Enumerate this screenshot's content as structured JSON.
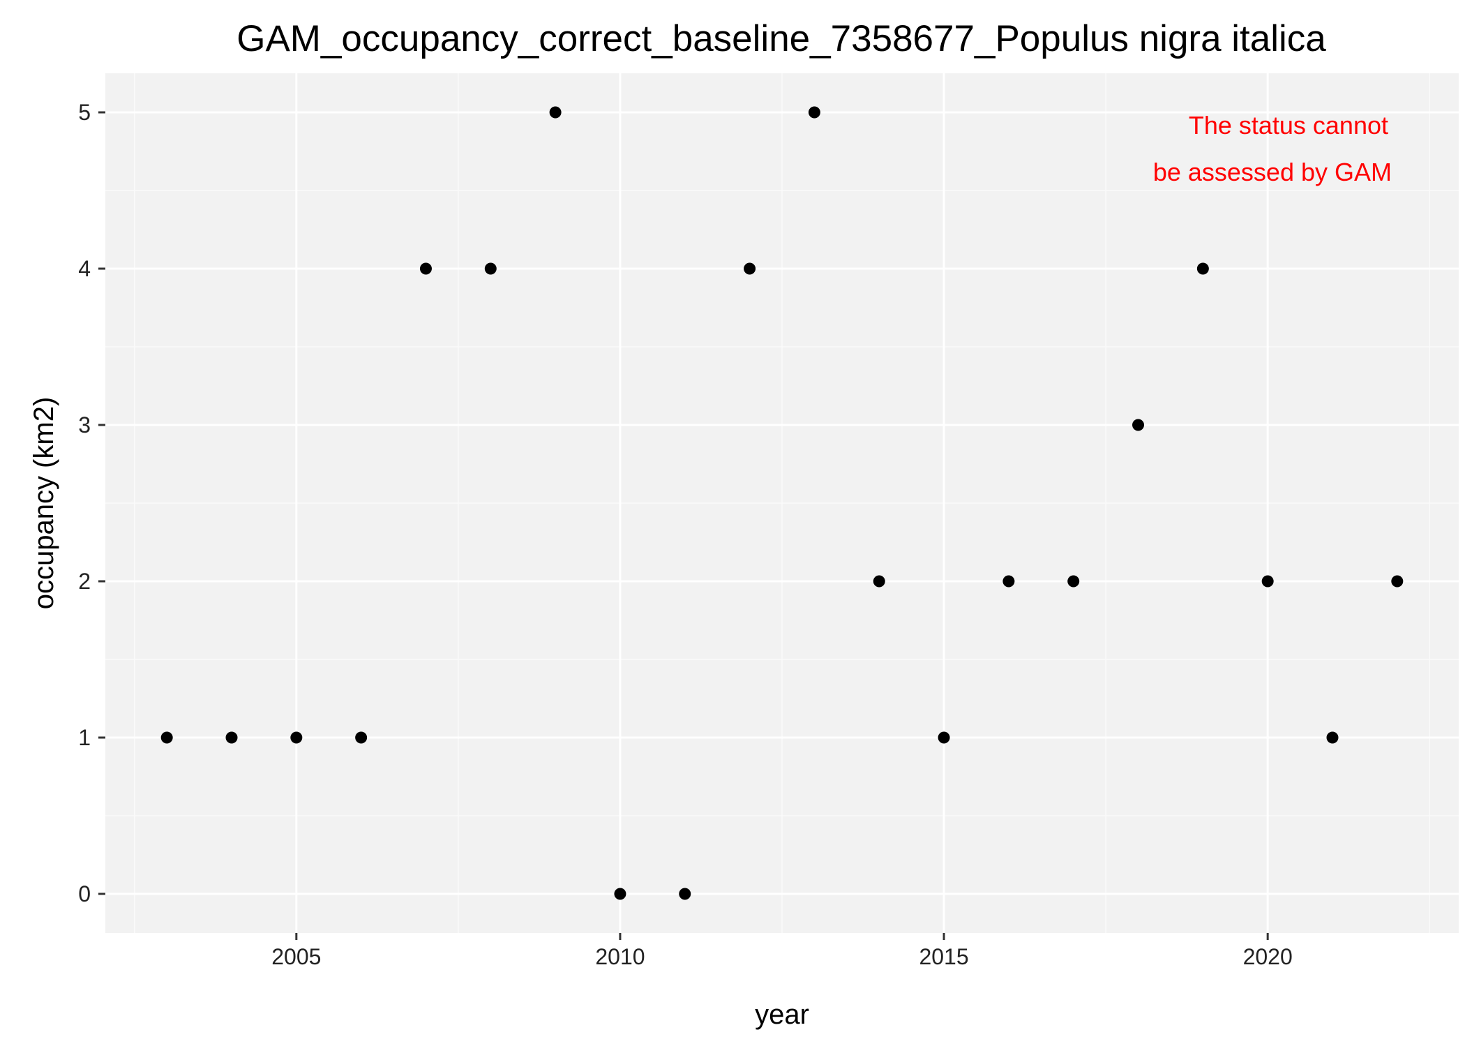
{
  "chart_data": {
    "type": "scatter",
    "title": "GAM_occupancy_correct_baseline_7358677_Populus nigra italica",
    "xlabel": "year",
    "ylabel": "occupancy (km2)",
    "xlim": [
      2002.05,
      2022.95
    ],
    "ylim": [
      -0.25,
      5.25
    ],
    "x_ticks": [
      2005,
      2010,
      2015,
      2020
    ],
    "x_minor_ticks": [
      2002.5,
      2007.5,
      2012.5,
      2017.5,
      2022.5
    ],
    "y_ticks": [
      0,
      1,
      2,
      3,
      4,
      5
    ],
    "y_minor_ticks": [
      0.5,
      1.5,
      2.5,
      3.5,
      4.5
    ],
    "grid": true,
    "x": [
      2003,
      2004,
      2005,
      2006,
      2007,
      2008,
      2009,
      2010,
      2011,
      2012,
      2013,
      2014,
      2015,
      2016,
      2017,
      2018,
      2019,
      2020,
      2021,
      2022
    ],
    "y": [
      1,
      1,
      1,
      1,
      4,
      4,
      5,
      0,
      0,
      4,
      5,
      2,
      1,
      2,
      2,
      3,
      4,
      2,
      1,
      2
    ],
    "annotation": {
      "lines": [
        "The status cannot",
        "be assessed by GAM"
      ],
      "color": "#ff0000",
      "placement": "top-right"
    },
    "colors": {
      "panel_background": "#f2f2f2",
      "grid_major": "#ffffff",
      "grid_minor": "#fafafa",
      "point": "#000000",
      "tick": "#333333"
    }
  }
}
